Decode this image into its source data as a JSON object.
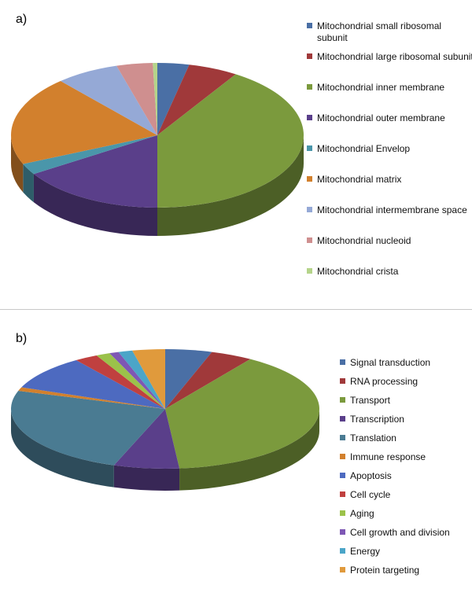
{
  "chart_data": [
    {
      "panel": "a)",
      "type": "pie",
      "legend_position": "right",
      "categories": [
        "Mitochondrial small ribosomal subunit",
        "Mitochondrial large ribosomal subunit",
        "Mitochondrial inner membrane",
        "Mitochondrial outer membrane",
        "Mitochondrial Envelop",
        "Mitochondrial matrix",
        "Mitochondrial intermembrane space",
        "Mitochondrial nucleoid",
        "Mitochondrial crista"
      ],
      "values": [
        3.5,
        5.5,
        41,
        16,
        2.5,
        20,
        7,
        4,
        0.5
      ],
      "colors": [
        "#4a6fa5",
        "#a0393a",
        "#7b9a3d",
        "#5a3f8a",
        "#4a96aa",
        "#d2802d",
        "#95a9d6",
        "#cf8f8f",
        "#b5d48a"
      ]
    },
    {
      "panel": "b)",
      "type": "pie",
      "legend_position": "right",
      "categories": [
        "Signal transduction",
        "RNA processing",
        "Transport",
        "Transcription",
        "Translation",
        "Immune response",
        "Apoptosis",
        "Cell cycle",
        "Aging",
        "Cell growth and division",
        "Energy",
        "Protein targeting"
      ],
      "values": [
        5,
        4.5,
        40,
        7,
        25,
        1,
        9.5,
        2.5,
        1.5,
        1,
        1.5,
        3.5
      ],
      "colors": [
        "#4a6fa5",
        "#a0393a",
        "#7b9a3d",
        "#5a3f8a",
        "#4a7b92",
        "#d2802d",
        "#4d6ac0",
        "#c0403f",
        "#9bc24a",
        "#7e57b4",
        "#4ba5c8",
        "#e09a3c"
      ]
    }
  ]
}
